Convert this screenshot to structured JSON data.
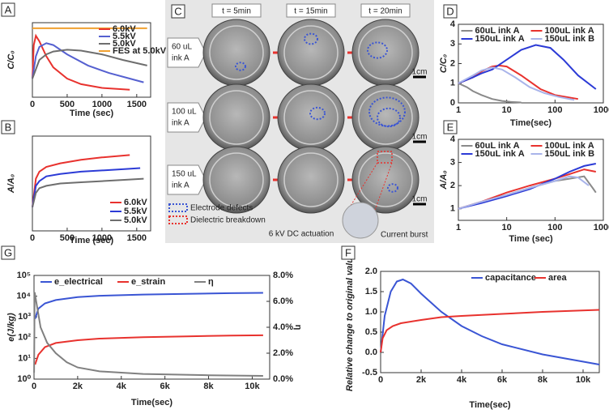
{
  "chart_data": [
    {
      "panel": "A",
      "type": "line",
      "y_label": "C/C₀",
      "x_label": "Time (sec)",
      "xlim": [
        0,
        1700
      ],
      "xticks": [
        0,
        500,
        1000,
        1500
      ],
      "ylim": [
        0,
        4
      ],
      "legend": "upper right",
      "series": [
        {
          "name": "6.0kV",
          "color": "#e8322e",
          "x": [
            0,
            20,
            50,
            100,
            200,
            300,
            500,
            700,
            1000,
            1400
          ],
          "values": [
            1.0,
            2.8,
            3.3,
            3.0,
            2.2,
            1.6,
            1.0,
            0.7,
            0.5,
            0.4
          ]
        },
        {
          "name": "5.5kV",
          "color": "#5560d0",
          "x": [
            0,
            50,
            100,
            200,
            300,
            500,
            800,
            1100,
            1400,
            1600
          ],
          "values": [
            1.0,
            2.2,
            2.7,
            2.9,
            2.8,
            2.3,
            1.7,
            1.3,
            1.0,
            0.8
          ]
        },
        {
          "name": "5.0kV",
          "color": "#6e6e6e",
          "x": [
            0,
            100,
            200,
            300,
            500,
            700,
            1000,
            1300,
            1650
          ],
          "values": [
            1.0,
            2.0,
            2.3,
            2.45,
            2.55,
            2.5,
            2.3,
            2.0,
            1.7
          ]
        },
        {
          "name": "FES at 5.0kV",
          "color": "#f0a030",
          "x": [
            0,
            1650
          ],
          "values": [
            3.7,
            3.7
          ]
        }
      ]
    },
    {
      "panel": "B",
      "type": "line",
      "y_label": "A/A₀",
      "x_label": "Time (sec)",
      "xlim": [
        0,
        1700
      ],
      "xticks": [
        0,
        500,
        1000,
        1500
      ],
      "ylim": [
        0,
        4
      ],
      "legend": "lower right",
      "series": [
        {
          "name": "6.0kV",
          "color": "#e8322e",
          "x": [
            0,
            50,
            100,
            200,
            400,
            700,
            1000,
            1400
          ],
          "values": [
            1.0,
            2.2,
            2.5,
            2.7,
            2.85,
            3.0,
            3.1,
            3.2
          ]
        },
        {
          "name": "5.5kV",
          "color": "#2c3bd6",
          "x": [
            0,
            50,
            100,
            200,
            400,
            700,
            1000,
            1300,
            1550
          ],
          "values": [
            1.0,
            1.9,
            2.1,
            2.3,
            2.4,
            2.5,
            2.55,
            2.6,
            2.65
          ]
        },
        {
          "name": "5.0kV",
          "color": "#6e6e6e",
          "x": [
            0,
            50,
            100,
            200,
            400,
            700,
            1000,
            1300,
            1600
          ],
          "values": [
            1.0,
            1.6,
            1.8,
            1.9,
            2.0,
            2.05,
            2.1,
            2.15,
            2.2
          ]
        }
      ]
    },
    {
      "panel": "D",
      "type": "line",
      "y_label": "C/C₀",
      "x_label": "Time(sec)",
      "xscale": "log",
      "xlim": [
        1,
        1000
      ],
      "xticks": [
        1,
        10,
        100,
        1000
      ],
      "ylim": [
        0,
        4
      ],
      "yticks": [
        0,
        1,
        2,
        3,
        4
      ],
      "legend": "upper center",
      "series": [
        {
          "name": "60uL ink A",
          "color": "#8a8a8a",
          "x": [
            1,
            1.5,
            2,
            3,
            5,
            8,
            12,
            20
          ],
          "values": [
            1.0,
            0.8,
            0.6,
            0.4,
            0.2,
            0.1,
            0.05,
            0.02
          ]
        },
        {
          "name": "100uL ink A",
          "color": "#e8322e",
          "x": [
            1,
            2,
            3,
            5,
            7,
            10,
            20,
            50,
            100,
            300
          ],
          "values": [
            1.0,
            1.3,
            1.6,
            1.85,
            1.9,
            1.85,
            1.4,
            0.7,
            0.4,
            0.2
          ]
        },
        {
          "name": "150uL ink A",
          "color": "#2c3bd6",
          "x": [
            1,
            2,
            3,
            5,
            10,
            20,
            40,
            80,
            150,
            300,
            700
          ],
          "values": [
            1.0,
            1.3,
            1.5,
            1.7,
            2.2,
            2.7,
            2.95,
            2.8,
            2.2,
            1.4,
            0.7
          ]
        },
        {
          "name": "150uL ink B",
          "color": "#a9b4ea",
          "x": [
            1,
            2,
            3,
            5,
            8,
            15,
            30,
            60,
            120,
            250
          ],
          "values": [
            1.0,
            1.4,
            1.65,
            1.8,
            1.7,
            1.3,
            0.8,
            0.5,
            0.3,
            0.15
          ]
        }
      ]
    },
    {
      "panel": "E",
      "type": "line",
      "y_label": "A/A₀",
      "x_label": "Time (sec)",
      "xscale": "log",
      "xlim": [
        1,
        1000
      ],
      "xticks": [
        1,
        10,
        100,
        1000
      ],
      "ylim": [
        0.5,
        4
      ],
      "yticks": [
        1,
        2,
        3,
        4
      ],
      "legend": "upper center",
      "series": [
        {
          "name": "60uL ink A",
          "color": "#8a8a8a",
          "x": [
            1,
            3,
            10,
            30,
            100,
            200,
            400,
            600,
            700
          ],
          "values": [
            1.0,
            1.3,
            1.6,
            1.9,
            2.2,
            2.3,
            2.4,
            1.9,
            1.7
          ]
        },
        {
          "name": "100uL ink A",
          "color": "#e8322e",
          "x": [
            1,
            3,
            10,
            30,
            100,
            200,
            400,
            700
          ],
          "values": [
            1.0,
            1.3,
            1.7,
            2.0,
            2.3,
            2.5,
            2.7,
            2.6
          ]
        },
        {
          "name": "150uL ink A",
          "color": "#2c3bd6",
          "x": [
            1,
            3,
            10,
            30,
            100,
            200,
            400,
            700
          ],
          "values": [
            1.0,
            1.25,
            1.55,
            1.85,
            2.3,
            2.6,
            2.85,
            2.95
          ]
        },
        {
          "name": "150uL ink B",
          "color": "#a9b4ea",
          "x": [
            1,
            3,
            10,
            30,
            100,
            200,
            300,
            500
          ],
          "values": [
            1.0,
            1.3,
            1.6,
            1.9,
            2.2,
            2.4,
            2.35,
            2.0
          ]
        }
      ]
    },
    {
      "panel": "G",
      "type": "line",
      "y_label": "e(J/kg)",
      "y2_label": "η",
      "x_label": "Time(sec)",
      "yscale": "log",
      "xlim": [
        0,
        10800
      ],
      "xticks": [
        0,
        {
          "value": 2000,
          "label": "2k"
        },
        {
          "value": 4000,
          "label": "4k"
        },
        {
          "value": 6000,
          "label": "6k"
        },
        {
          "value": 8000,
          "label": "8k"
        },
        {
          "value": 10000,
          "label": "10k"
        }
      ],
      "ylim": [
        1,
        100000
      ],
      "yticks": [
        {
          "value": 1,
          "label": "10⁰"
        },
        {
          "value": 10,
          "label": "10¹"
        },
        {
          "value": 100,
          "label": "10²"
        },
        {
          "value": 1000,
          "label": "10³"
        },
        {
          "value": 10000,
          "label": "10⁴"
        },
        {
          "value": 100000,
          "label": "10⁵"
        }
      ],
      "y2lim": [
        0,
        8
      ],
      "y2ticks": [
        {
          "value": 0,
          "label": "0.0%"
        },
        {
          "value": 2,
          "label": "2.0%"
        },
        {
          "value": 4,
          "label": "4.0%"
        },
        {
          "value": 6,
          "label": "6.0%"
        },
        {
          "value": 8,
          "label": "8.0%"
        }
      ],
      "legend": "upper left",
      "series": [
        {
          "name": "e_electrical",
          "color": "#3a55d4",
          "x": [
            50,
            200,
            500,
            1000,
            2000,
            3000,
            5000,
            7000,
            9000,
            10500
          ],
          "values": [
            800,
            2500,
            4500,
            6500,
            9000,
            10500,
            12000,
            13000,
            14000,
            14500
          ]
        },
        {
          "name": "e_strain",
          "color": "#e8322e",
          "x": [
            50,
            200,
            500,
            1000,
            2000,
            3000,
            5000,
            7000,
            9000,
            10500
          ],
          "values": [
            5,
            15,
            35,
            55,
            75,
            90,
            105,
            115,
            125,
            130
          ]
        },
        {
          "name": "η",
          "color": "#808080",
          "axis": "y2",
          "x": [
            5,
            30,
            100,
            300,
            600,
            1000,
            1500,
            2000,
            3000,
            5000,
            8000,
            10500
          ],
          "values": [
            0.5,
            6.7,
            6.0,
            4.0,
            2.8,
            2.0,
            1.3,
            0.9,
            0.6,
            0.4,
            0.3,
            0.25
          ]
        }
      ]
    },
    {
      "panel": "F",
      "type": "line",
      "y_label": "Relative change to original value",
      "x_label": "Time(sec)",
      "xlim": [
        0,
        10800
      ],
      "xticks": [
        0,
        {
          "value": 2000,
          "label": "2k"
        },
        {
          "value": 4000,
          "label": "4k"
        },
        {
          "value": 6000,
          "label": "6k"
        },
        {
          "value": 8000,
          "label": "8k"
        },
        {
          "value": 10000,
          "label": "10k"
        }
      ],
      "ylim": [
        -0.5,
        2.0
      ],
      "yticks": [
        -0.5,
        {
          "value": 0,
          "label": "0.0"
        },
        0.5,
        {
          "value": 1,
          "label": "1.0"
        },
        1.5,
        {
          "value": 2,
          "label": "2.0"
        }
      ],
      "legend": "upper right",
      "series": [
        {
          "name": "capacitance",
          "color": "#3a55d4",
          "x": [
            0,
            200,
            500,
            800,
            1100,
            1500,
            2000,
            3000,
            4000,
            5000,
            6000,
            8000,
            10800
          ],
          "values": [
            0,
            0.9,
            1.5,
            1.75,
            1.8,
            1.7,
            1.45,
            1.0,
            0.65,
            0.4,
            0.2,
            -0.05,
            -0.3
          ]
        },
        {
          "name": "area",
          "color": "#e8322e",
          "x": [
            0,
            100,
            300,
            600,
            1000,
            2000,
            3000,
            4000,
            6000,
            8000,
            10800
          ],
          "values": [
            0,
            0.35,
            0.55,
            0.65,
            0.72,
            0.8,
            0.87,
            0.9,
            0.95,
            1.0,
            1.05
          ]
        }
      ]
    }
  ],
  "photo_panel": {
    "panel": "C",
    "time_labels": [
      "t = 5min",
      "t = 15min",
      "t = 20min"
    ],
    "row_labels": [
      [
        "60 uL",
        "ink A"
      ],
      [
        "100 uL",
        "ink A"
      ],
      [
        "150 uL",
        "ink A"
      ]
    ],
    "scale_bars": [
      "1cm",
      "1cm",
      "1cm"
    ],
    "legend": [
      "Electrode defects",
      "Dielectric breakdown"
    ],
    "caption": "6 kV DC actuation",
    "inset_label": "Current burst"
  }
}
